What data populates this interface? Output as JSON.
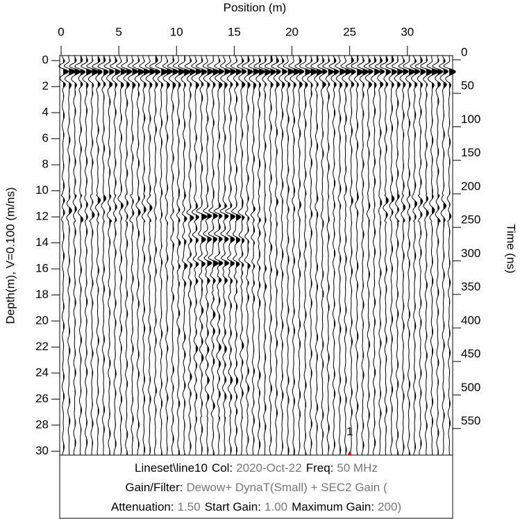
{
  "chart_data": {
    "type": "radargram",
    "xlabel": "Position (m)",
    "ylabel": "Depth(m), V=0.100 (m/ns)",
    "y2label": "Time (ns)",
    "xlim": [
      0,
      33.8
    ],
    "xticks": [
      0,
      5,
      10,
      15,
      20,
      25,
      30
    ],
    "ylim": [
      30.3,
      -0.6
    ],
    "yticks": [
      0,
      2,
      4,
      6,
      8,
      10,
      12,
      14,
      16,
      18,
      20,
      22,
      24,
      26,
      28,
      30
    ],
    "y2lim": [
      600,
      0
    ],
    "y2ticks": [
      0,
      50,
      100,
      150,
      200,
      250,
      300,
      350,
      400,
      450,
      500,
      550
    ],
    "trace_color": "#000000",
    "annotations": [
      {
        "text": "1",
        "x": 25,
        "color": "#e00000"
      }
    ],
    "info": [
      [
        {
          "label": "Lineset\\line10"
        },
        {
          "label": "Col:",
          "value": "2020-Oct-22"
        },
        {
          "label": "Freq:",
          "value": "50 MHz"
        }
      ],
      [
        {
          "label": "Gain/Filter:",
          "value": "Dewow+ DynaT(Small) + SEC2 Gain ("
        }
      ],
      [
        {
          "label": "Attenuation:",
          "value": "1.50"
        },
        {
          "label": "Start Gain:",
          "value": "1.00"
        },
        {
          "label": "Maximum Gain:",
          "value": "200)"
        }
      ]
    ]
  }
}
